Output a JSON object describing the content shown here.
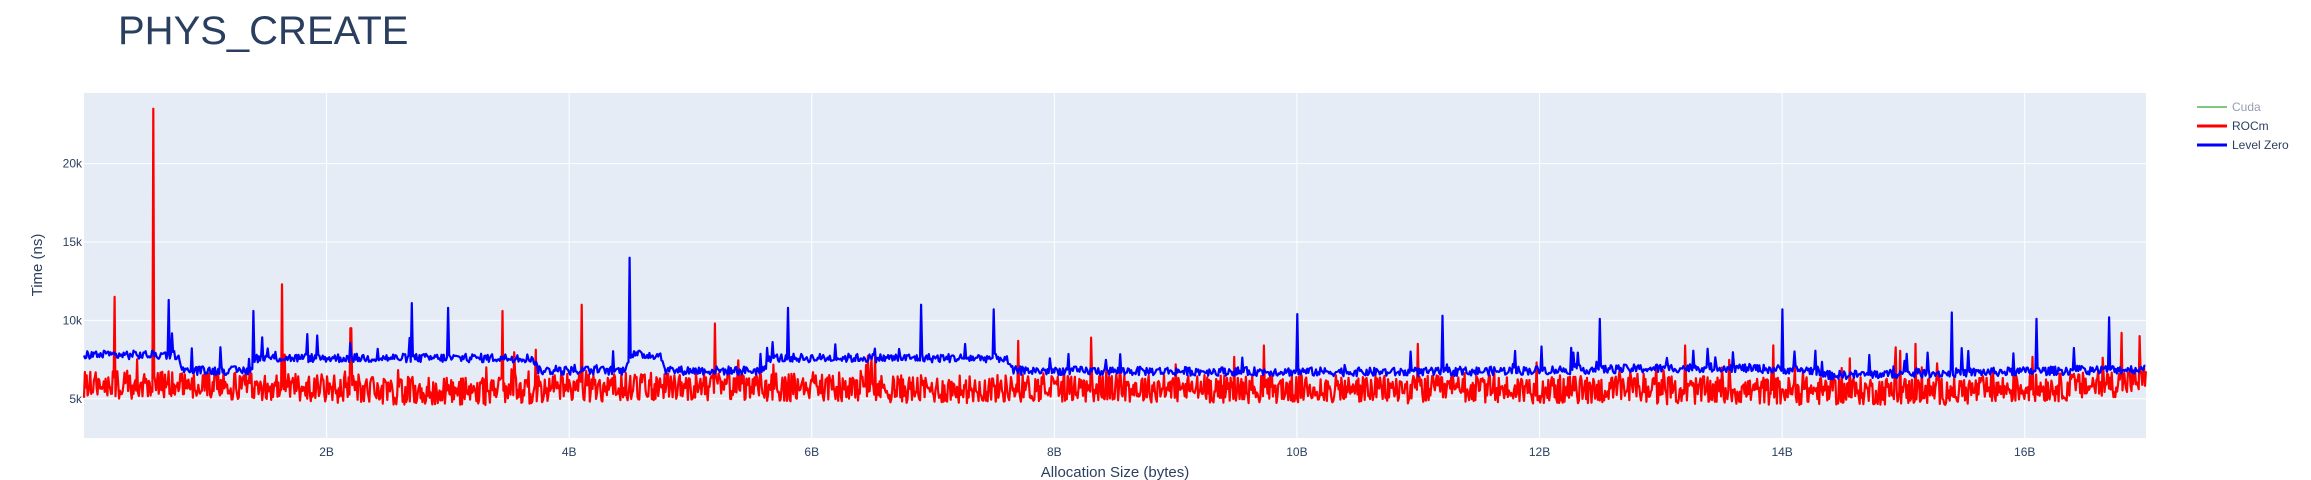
{
  "chart_data": {
    "type": "line",
    "title": "PHYS_CREATE",
    "xlabel": "Allocation Size (bytes)",
    "ylabel": "Time (ns)",
    "xlim": [
      0,
      17
    ],
    "ylim": [
      2500,
      24500
    ],
    "x_ticks": [
      {
        "value": 2,
        "label": "2B"
      },
      {
        "value": 4,
        "label": "4B"
      },
      {
        "value": 6,
        "label": "6B"
      },
      {
        "value": 8,
        "label": "8B"
      },
      {
        "value": 10,
        "label": "10B"
      },
      {
        "value": 12,
        "label": "12B"
      },
      {
        "value": 14,
        "label": "14B"
      },
      {
        "value": 16,
        "label": "16B"
      }
    ],
    "y_ticks": [
      {
        "value": 5000,
        "label": "5k"
      },
      {
        "value": 10000,
        "label": "10k"
      },
      {
        "value": 15000,
        "label": "15k"
      },
      {
        "value": 20000,
        "label": "20k"
      }
    ],
    "grid": true,
    "legend_position": "top-right",
    "plot_background": "#e5ecf6",
    "series": [
      {
        "name": "Cuda",
        "color": "#2ca02c",
        "visible": "legendonly",
        "values": []
      },
      {
        "name": "ROCm",
        "color": "#ff0000",
        "visible": true,
        "baseline": [
          [
            0.0,
            5900
          ],
          [
            0.8,
            5900
          ],
          [
            1.5,
            5800
          ],
          [
            2.5,
            5500
          ],
          [
            3.5,
            5500
          ],
          [
            4.0,
            5700
          ],
          [
            5.0,
            5800
          ],
          [
            6.0,
            5700
          ],
          [
            7.0,
            5600
          ],
          [
            8.0,
            5700
          ],
          [
            10.0,
            5600
          ],
          [
            12.0,
            5600
          ],
          [
            14.0,
            5500
          ],
          [
            15.5,
            5500
          ],
          [
            16.5,
            5800
          ],
          [
            17.0,
            6200
          ]
        ],
        "spikes": [
          [
            0.57,
            23500
          ],
          [
            1.63,
            12300
          ],
          [
            4.1,
            11000
          ],
          [
            0.25,
            11500
          ],
          [
            3.45,
            10600
          ],
          [
            5.2,
            9800
          ],
          [
            8.3,
            8900
          ],
          [
            11.0,
            8500
          ],
          [
            13.2,
            8400
          ],
          [
            15.1,
            8500
          ],
          [
            16.8,
            9200
          ],
          [
            16.95,
            9000
          ],
          [
            7.7,
            8700
          ],
          [
            2.2,
            9500
          ]
        ]
      },
      {
        "name": "Level Zero",
        "color": "#0000ff",
        "visible": true,
        "baseline": [
          [
            0.0,
            7800
          ],
          [
            0.78,
            7800
          ],
          [
            0.8,
            6800
          ],
          [
            1.38,
            6800
          ],
          [
            1.4,
            7600
          ],
          [
            3.7,
            7600
          ],
          [
            3.75,
            6800
          ],
          [
            4.45,
            6800
          ],
          [
            4.5,
            7800
          ],
          [
            4.75,
            7800
          ],
          [
            4.8,
            6800
          ],
          [
            5.6,
            6800
          ],
          [
            5.65,
            7600
          ],
          [
            7.6,
            7600
          ],
          [
            7.65,
            6800
          ],
          [
            11.0,
            6700
          ],
          [
            13.5,
            7000
          ],
          [
            14.3,
            6800
          ],
          [
            14.35,
            6500
          ],
          [
            17.0,
            6900
          ]
        ],
        "spikes": [
          [
            4.5,
            14000
          ],
          [
            0.7,
            11300
          ],
          [
            5.8,
            10800
          ],
          [
            6.9,
            11000
          ],
          [
            2.7,
            11100
          ],
          [
            3.0,
            10800
          ],
          [
            10.0,
            10400
          ],
          [
            11.2,
            10300
          ],
          [
            14.0,
            10700
          ],
          [
            15.4,
            10500
          ],
          [
            16.1,
            10100
          ],
          [
            16.7,
            10200
          ],
          [
            12.5,
            10100
          ],
          [
            1.4,
            10600
          ],
          [
            7.5,
            10700
          ]
        ]
      }
    ]
  }
}
